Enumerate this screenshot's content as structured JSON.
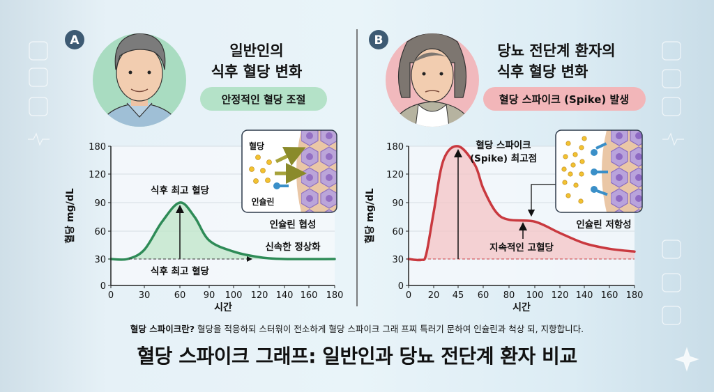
{
  "colors": {
    "badge": "#3d5a73",
    "normal": "#2e8b57",
    "normal_fill": "#bfe6c8",
    "prediabetes": "#c9393f",
    "prediabetes_fill": "#f4c4c6",
    "mint": "#b4e2c8",
    "pink": "#f2b6b9"
  },
  "panel_a": {
    "badge": "A",
    "title_line1": "일반인의",
    "title_line2": "식후 혈당 변화",
    "pill": "안정적인 혈당 조절",
    "inset": {
      "glucose_label": "혈당",
      "insulin_label": "인슐린",
      "caption": "인슐린 협성"
    },
    "annotations": {
      "peak_top": "식후 최고 혈당",
      "peak_bottom": "식후 최고 혈당",
      "normalize": "신속한 정상화"
    }
  },
  "panel_b": {
    "badge": "B",
    "title_line1": "당뇨 전단계 환자의",
    "title_line2": "식후 혈당 변화",
    "pill": "혈당 스파이크 (Spike) 발생",
    "inset": {
      "caption": "인슐린 저항성"
    },
    "annotations": {
      "spike_line1": "혈당 스파이크",
      "spike_line2": "(Spike) 최고점",
      "sustained": "지속적인 고혈당"
    }
  },
  "footer": {
    "note_bold": "혈당 스파이크란?",
    "note_text": " 혈당을 적응하되 스터웎이 전소하게 혈당 스파이크 그래 프찌 특러기 문하여 인슐린과 척상 되, 지항합니다.",
    "title": "혈당 스파이크 그래프: 일반인과 당뇨 전단계 환자 비교"
  },
  "chart_data": [
    {
      "type": "area",
      "xlabel": "시간",
      "ylabel": "혈당 mg/dL",
      "x_ticks": [
        0,
        30,
        60,
        90,
        100,
        120,
        140,
        160,
        180
      ],
      "y_ticks": [
        0,
        30,
        60,
        90,
        120,
        180
      ],
      "xlim": [
        0,
        180
      ],
      "ylim": [
        0,
        180
      ],
      "grid": true,
      "baseline": 30,
      "series": [
        {
          "x": [
            0,
            15,
            30,
            45,
            60,
            75,
            90,
            100,
            120,
            140,
            180
          ],
          "y": [
            30,
            30,
            40,
            70,
            90,
            75,
            50,
            38,
            32,
            30,
            30
          ]
        }
      ]
    },
    {
      "type": "area",
      "xlabel": "시간",
      "ylabel": "혈당 mg/dL",
      "x_ticks": [
        0,
        20,
        45,
        60,
        80,
        100,
        120,
        140,
        160,
        180
      ],
      "y_ticks": [
        0,
        30,
        60,
        90,
        120,
        180
      ],
      "xlim": [
        0,
        180
      ],
      "ylim": [
        0,
        180
      ],
      "grid": true,
      "baseline": 30,
      "series": [
        {
          "x": [
            0,
            10,
            14,
            20,
            30,
            45,
            55,
            60,
            70,
            80,
            100,
            120,
            140,
            160,
            180
          ],
          "y": [
            30,
            29,
            35,
            80,
            150,
            180,
            140,
            105,
            80,
            72,
            70,
            58,
            47,
            41,
            38
          ]
        }
      ]
    }
  ]
}
